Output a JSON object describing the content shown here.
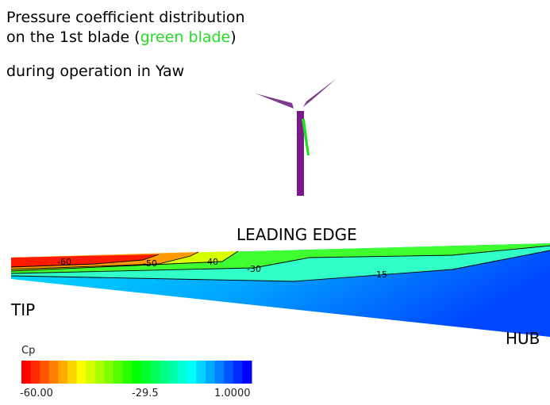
{
  "title": {
    "line1": "Pressure coefficient distribution",
    "line2_before": "on the 1st blade (",
    "line2_highlight": "green blade",
    "line2_after": ")",
    "line3": "during operation in Yaw"
  },
  "labels": {
    "leading_edge": "LEADING EDGE",
    "tip": "TIP",
    "hub": "HUB"
  },
  "contour_labels": [
    "-60",
    "-50",
    "-40",
    "-30",
    "-15"
  ],
  "colorbar": {
    "title": "Cp",
    "ticks": [
      "-60.00",
      "-29.5",
      "1.0000"
    ]
  }
}
